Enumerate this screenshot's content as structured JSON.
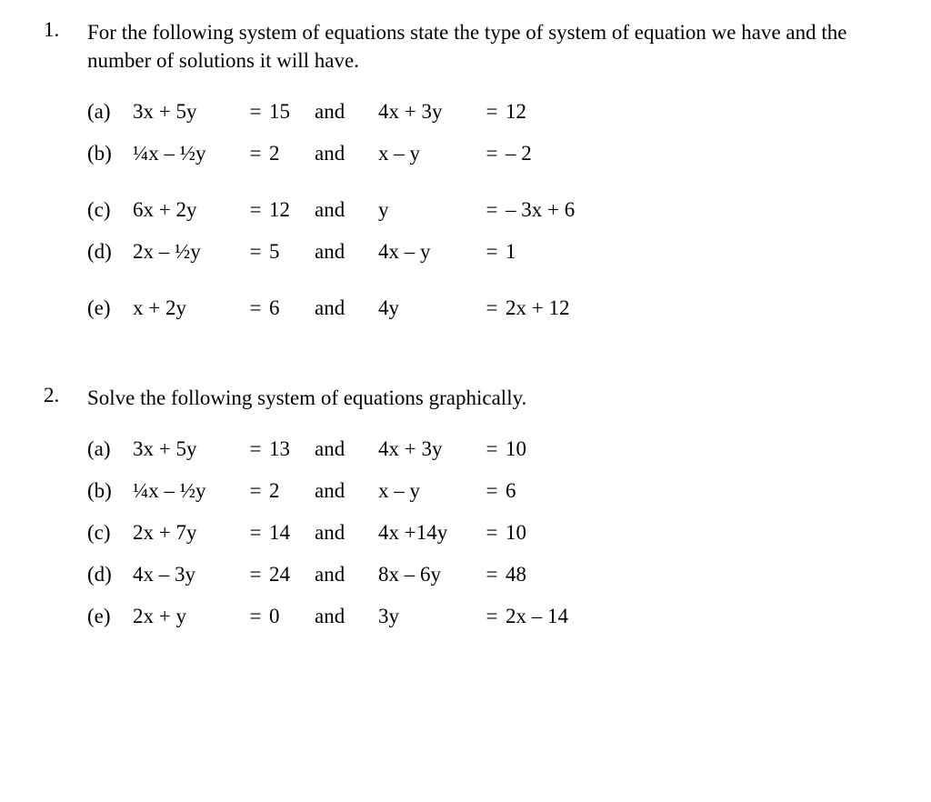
{
  "text_color": "#000000",
  "background_color": "#ffffff",
  "font_family": "Times New Roman",
  "base_font_size_pt": 17,
  "problems": [
    {
      "number": "1.",
      "prompt": "For the following system of equations state the type of system of equation we have and the number of solutions it will have.",
      "sub": [
        {
          "label": "(a)",
          "lhs1": "3x + 5y",
          "rhs1": "15",
          "and": "and",
          "lhs2": "4x + 3y",
          "rhs2": "12",
          "gap": false
        },
        {
          "label": "(b)",
          "lhs1": "¼x – ½y",
          "rhs1": "2",
          "and": "and",
          "lhs2": "x – y",
          "rhs2": "– 2",
          "gap": true
        },
        {
          "label": "(c)",
          "lhs1": "6x + 2y",
          "rhs1": "12",
          "and": "and",
          "lhs2": "y",
          "rhs2": "– 3x + 6",
          "gap": false
        },
        {
          "label": "(d)",
          "lhs1": "2x – ½y",
          "rhs1": "5",
          "and": "and",
          "lhs2": "4x – y",
          "rhs2": "1",
          "gap": true
        },
        {
          "label": "(e)",
          "lhs1": "x + 2y",
          "rhs1": "6",
          "and": "and",
          "lhs2": "4y",
          "rhs2": "2x + 12",
          "gap": false
        }
      ]
    },
    {
      "number": "2.",
      "prompt": "Solve the following system of equations graphically.",
      "sub": [
        {
          "label": "(a)",
          "lhs1": "3x + 5y",
          "rhs1": "13",
          "and": "and",
          "lhs2": "4x + 3y",
          "rhs2": "10",
          "gap": false
        },
        {
          "label": "(b)",
          "lhs1": "¼x – ½y",
          "rhs1": "2",
          "and": "and",
          "lhs2": "x – y",
          "rhs2": "6",
          "gap": false
        },
        {
          "label": "(c)",
          "lhs1": "2x + 7y",
          "rhs1": "14",
          "and": "and",
          "lhs2": "4x +14y",
          "rhs2": "10",
          "gap": false
        },
        {
          "label": "(d)",
          "lhs1": "4x – 3y",
          "rhs1": "24",
          "and": "and",
          "lhs2": "8x – 6y",
          "rhs2": "48",
          "gap": false
        },
        {
          "label": "(e)",
          "lhs1": "2x + y",
          "rhs1": "0",
          "and": "and",
          "lhs2": "3y",
          "rhs2": "2x – 14",
          "gap": false
        }
      ]
    }
  ],
  "equals_sign": "="
}
